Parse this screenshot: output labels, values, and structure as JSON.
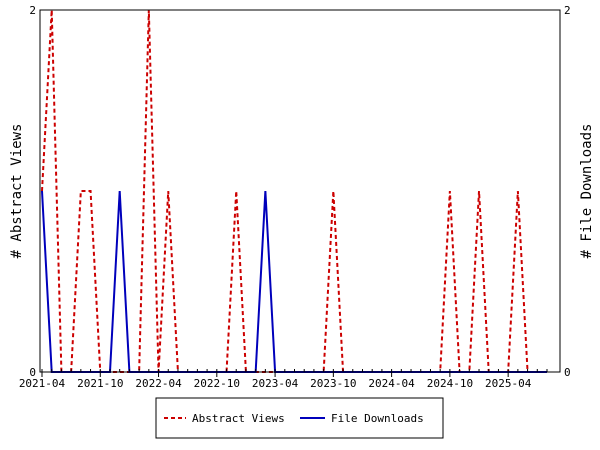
{
  "chart_data": {
    "type": "line",
    "title": "",
    "ylabel_left": "# Abstract Views",
    "ylabel_right": "# File Downloads",
    "ylim": [
      0,
      2
    ],
    "y_ticks": [
      "0",
      "2"
    ],
    "x_tick_labels": [
      "2021-04",
      "2021-10",
      "2022-04",
      "2022-10",
      "2023-04",
      "2023-10",
      "2024-04",
      "2024-10",
      "2025-04"
    ],
    "x_months": [
      "2021-04",
      "2021-05",
      "2021-06",
      "2021-07",
      "2021-08",
      "2021-09",
      "2021-10",
      "2021-11",
      "2021-12",
      "2022-01",
      "2022-02",
      "2022-03",
      "2022-04",
      "2022-05",
      "2022-06",
      "2022-07",
      "2022-08",
      "2022-09",
      "2022-10",
      "2022-11",
      "2022-12",
      "2023-01",
      "2023-02",
      "2023-03",
      "2023-04",
      "2023-05",
      "2023-06",
      "2023-07",
      "2023-08",
      "2023-09",
      "2023-10",
      "2023-11",
      "2023-12",
      "2024-01",
      "2024-02",
      "2024-03",
      "2024-04",
      "2024-05",
      "2024-06",
      "2024-07",
      "2024-08",
      "2024-09",
      "2024-10",
      "2024-11",
      "2024-12",
      "2025-01",
      "2025-02",
      "2025-03",
      "2025-04",
      "2025-05",
      "2025-06",
      "2025-07",
      "2025-08"
    ],
    "legend_position": "bottom",
    "series": [
      {
        "name": "Abstract Views",
        "color": "#cc0000",
        "style": "dashed",
        "values": [
          1,
          2,
          0,
          0,
          1,
          1,
          0,
          0,
          0,
          0,
          0,
          2,
          0,
          1,
          0,
          0,
          0,
          0,
          0,
          0,
          1,
          0,
          0,
          0,
          0,
          0,
          0,
          0,
          0,
          0,
          1,
          0,
          0,
          0,
          0,
          0,
          0,
          0,
          0,
          0,
          0,
          0,
          1,
          0,
          0,
          1,
          0,
          0,
          0,
          1,
          0,
          0,
          0
        ]
      },
      {
        "name": "File Downloads",
        "color": "#0000bb",
        "style": "solid",
        "values": [
          1,
          0,
          0,
          0,
          0,
          0,
          0,
          0,
          1,
          0,
          0,
          0,
          0,
          0,
          0,
          0,
          0,
          0,
          0,
          0,
          0,
          0,
          0,
          1,
          0,
          0,
          0,
          0,
          0,
          0,
          0,
          0,
          0,
          0,
          0,
          0,
          0,
          0,
          0,
          0,
          0,
          0,
          0,
          0,
          0,
          0,
          0,
          0,
          0,
          0,
          0,
          0,
          0
        ]
      }
    ]
  }
}
